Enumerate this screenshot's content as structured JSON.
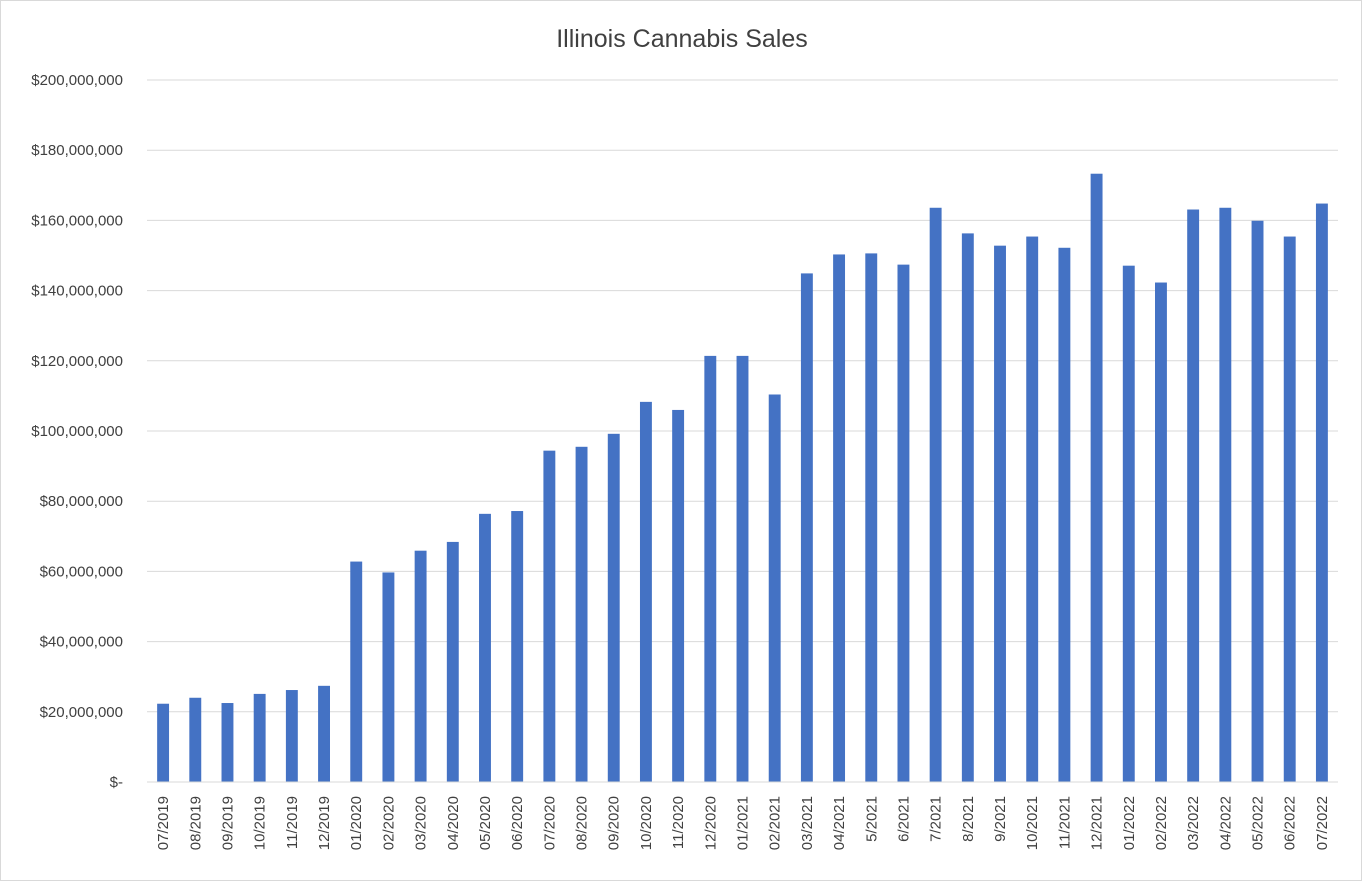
{
  "chart_data": {
    "type": "bar",
    "title": "Illinois Cannabis Sales",
    "xlabel": "",
    "ylabel": "",
    "ylim": [
      0,
      200000000
    ],
    "grid": true,
    "legend": "none",
    "bar_color": "#4472C4",
    "grid_color": "#d9d9d9",
    "y_ticks": [
      "$-",
      "$20,000,000",
      "$40,000,000",
      "$60,000,000",
      "$80,000,000",
      "$100,000,000",
      "$120,000,000",
      "$140,000,000",
      "$160,000,000",
      "$180,000,000",
      "$200,000,000"
    ],
    "categories": [
      "07/2019",
      "08/2019",
      "09/2019",
      "10/2019",
      "11/2019",
      "12/2019",
      "01/2020",
      "02/2020",
      "03/2020",
      "04/2020",
      "05/2020",
      "06/2020",
      "07/2020",
      "08/2020",
      "09/2020",
      "10/2020",
      "11/2020",
      "12/2020",
      "01/2021",
      "02/2021",
      "03/2021",
      "04/2021",
      "5/2021",
      "6/2021",
      "7/2021",
      "8/2021",
      "9/2021",
      "10/2021",
      "11/2021",
      "12/2021",
      "01/2022",
      "02/2022",
      "03/2022",
      "04/2022",
      "05/2022",
      "06/2022",
      "07/2022"
    ],
    "values": [
      22300000,
      24000000,
      22500000,
      25100000,
      26200000,
      27400000,
      62800000,
      59700000,
      65900000,
      68400000,
      76400000,
      77200000,
      94400000,
      95500000,
      99200000,
      108300000,
      106000000,
      121400000,
      121400000,
      110400000,
      144900000,
      150300000,
      150600000,
      147400000,
      163600000,
      156300000,
      152800000,
      155400000,
      152200000,
      173300000,
      147100000,
      142300000,
      163100000,
      163600000,
      159900000,
      155400000,
      164800000
    ]
  }
}
